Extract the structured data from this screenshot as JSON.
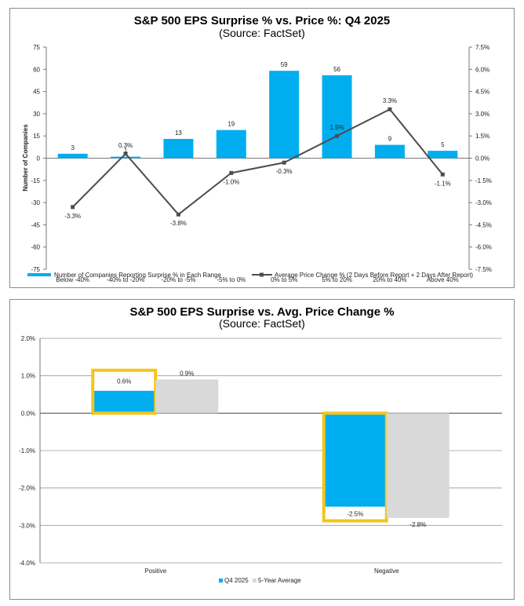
{
  "chart_data": [
    {
      "type": "bar+line",
      "title": "S&P 500 EPS Surprise % vs. Price %: Q4 2025",
      "subtitle": "(Source: FactSet)",
      "categories": [
        "Below -40%",
        "-40% to -20%",
        "-20% to -5%",
        "-5% to 0%",
        "0% to 5%",
        "5% to 20%",
        "20% to 40%",
        "Above 40%"
      ],
      "series": [
        {
          "name": "Number of Companies Reporting Surprise % in Each Range",
          "kind": "bar",
          "axis": "left",
          "color": "#00aeef",
          "values": [
            3,
            1,
            13,
            19,
            59,
            56,
            9,
            5
          ],
          "labels": [
            "3",
            "1",
            "13",
            "19",
            "59",
            "56",
            "9",
            "5"
          ]
        },
        {
          "name": "Average Price Change % (2 Days Before Report + 2 Days After Report)",
          "kind": "line",
          "axis": "right",
          "color": "#4d4d4d",
          "values": [
            -3.3,
            0.3,
            -3.8,
            -1.0,
            -0.3,
            1.5,
            3.3,
            -1.1
          ],
          "labels": [
            "-3.3%",
            "0.3%",
            "-3.8%",
            "-1.0%",
            "-0.3%",
            "1.5%",
            "3.3%",
            "-1.1%"
          ]
        }
      ],
      "ylabel": "Number of Companies",
      "ylim": [
        -75,
        75
      ],
      "yticks": [
        "75",
        "60",
        "45",
        "30",
        "15",
        "0",
        "-15",
        "-30",
        "-45",
        "-60",
        "-75"
      ],
      "y2lim": [
        -7.5,
        7.5
      ],
      "y2ticks": [
        "7.5%",
        "6.0%",
        "4.5%",
        "3.0%",
        "1.5%",
        "0.0%",
        "-1.5%",
        "-3.0%",
        "-4.5%",
        "-6.0%",
        "-7.5%"
      ],
      "legend": "bottom"
    },
    {
      "type": "bar",
      "title": "S&P 500 EPS Surprise vs. Avg. Price Change %",
      "subtitle": "(Source: FactSet)",
      "categories": [
        "Positive",
        "Negative"
      ],
      "series": [
        {
          "name": "Q4 2025",
          "color": "#00aeef",
          "values": [
            0.6,
            -2.5
          ],
          "labels": [
            "0.6%",
            "-2.5%"
          ],
          "highlighted": true,
          "highlight_color": "#f5c518"
        },
        {
          "name": "5-Year Average",
          "color": "#d9d9d9",
          "values": [
            0.9,
            -2.8
          ],
          "labels": [
            "0.9%",
            "-2.8%"
          ]
        }
      ],
      "ylim": [
        -4.0,
        2.0
      ],
      "yticks": [
        "2.0%",
        "1.0%",
        "0.0%",
        "-1.0%",
        "-2.0%",
        "-3.0%",
        "-4.0%"
      ],
      "grid": true,
      "legend": "bottom"
    }
  ]
}
